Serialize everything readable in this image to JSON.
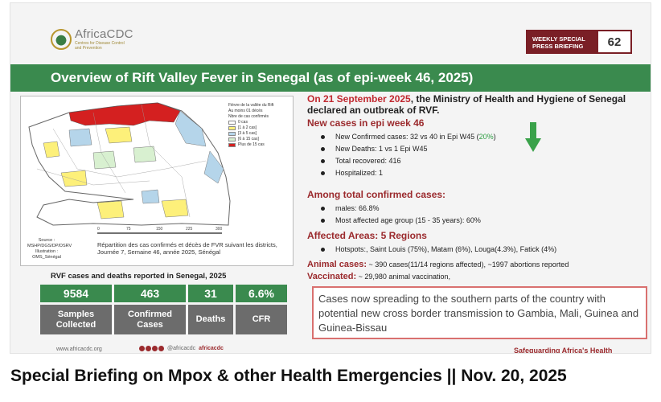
{
  "brand": {
    "name": "AfricaCDC",
    "subtitle": "Centres for Disease Control and Prevention"
  },
  "badge": {
    "label": "WEEKLY SPECIAL PRESS BRIEFING",
    "number": "62"
  },
  "banner_title": "Overview of Rift Valley Fever in Senegal  (as of epi-week 46, 2025)",
  "map": {
    "legend_title": "Fièvre de la vallée du Rift",
    "legend_sub": "Au moins 01 décès",
    "legend_group": "Nbre de cas confirmés",
    "legend_items": [
      {
        "label": "0 cas",
        "color": "#ffffff"
      },
      {
        "label": "[1 à 2 cas]",
        "color": "#fdf07a"
      },
      {
        "label": "[3 à 5 cas]",
        "color": "#b5d5ea"
      },
      {
        "label": "[6 à 15 cas]",
        "color": "#d8f0d0"
      },
      {
        "label": "Plus de 15 cas",
        "color": "#d42020"
      }
    ],
    "scale_ticks": [
      "0",
      "75",
      "150",
      "225",
      "300"
    ],
    "source": "Source : MSHP/DGS/DP/DSRV Illustration : OMS_Sénégal",
    "caption": "Répartition des cas confirmés et décès de FVR suivant les districts, Journée 7, Semaine 46, année 2025, Sénégal"
  },
  "stats_title": "RVF cases and deaths reported in Senegal, 2025",
  "stats": [
    {
      "value": "9584",
      "label": "Samples Collected"
    },
    {
      "value": "463",
      "label": "Confirmed Cases"
    },
    {
      "value": "31",
      "label": "Deaths"
    },
    {
      "value": "6.6%",
      "label": "CFR"
    }
  ],
  "intro": {
    "date": "On 21 September 2025",
    "text": ", the Ministry of Health and Hygiene of Senegal declared an outbreak of RVF."
  },
  "new_cases": {
    "heading": "New cases in epi week 46",
    "confirmed_prefix": "New Confirmed cases: 32 vs 40 in Epi W45 (",
    "confirmed_pct": "20%",
    "confirmed_suffix": ")",
    "items": [
      "New Deaths: 1 vs 1 Epi W45",
      "Total recovered: 416",
      "Hospitalized: 1"
    ]
  },
  "among": {
    "heading": "Among total confirmed cases:",
    "items": [
      "males: 66.8%",
      "Most affected age group (15 - 35 years): 60%"
    ]
  },
  "affected": {
    "heading": "Affected Areas: 5 Regions",
    "items": [
      "Hotspots:, Saint Louis (75%), Matam (6%), Louga(4.3%), Fatick (4%)"
    ]
  },
  "animal": {
    "label": "Animal cases:",
    "text": " ~ 390 cases(11/14 regions affected), ~1997 abortions reported"
  },
  "vaccinated": {
    "label": "Vaccinated:",
    "text": " ~ 29,980 animal vaccination,"
  },
  "callout": "Cases now spreading to the southern parts of the country with potential new cross border transmission to Gambia, Mali, Guinea and Guinea-Bissau",
  "footer": {
    "url": "www.africacdc.org",
    "handle": "@africacdc",
    "handle2": "africacdc",
    "tagline": "Safeguarding Africa's Health"
  },
  "page_title": "Special Briefing on Mpox & other Health Emergencies || Nov. 20, 2025",
  "colors": {
    "green": "#3a8a4e",
    "maroon": "#7a1f26",
    "gray": "#6c6c6c",
    "red": "#c0282f"
  }
}
